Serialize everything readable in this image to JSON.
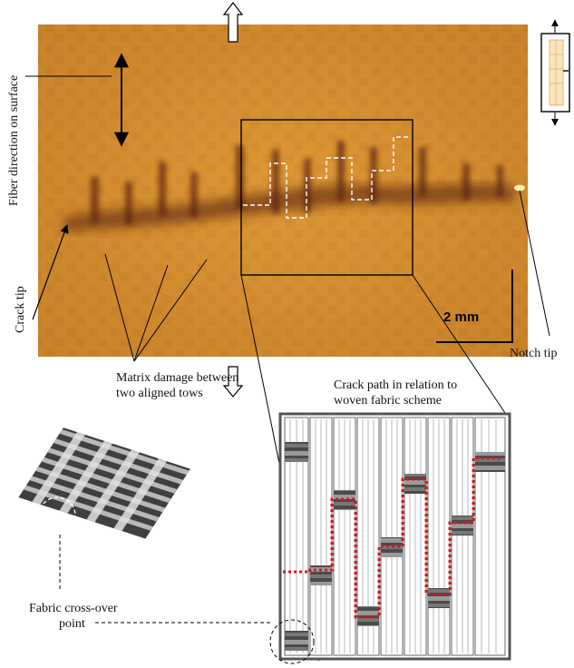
{
  "labels": {
    "fiber_direction": "Fiber direction on surface",
    "crack_tip": "Crack tip",
    "notch_tip": "Notch tip",
    "scale_bar": "2 mm",
    "matrix_damage_line1": "Matrix damage between",
    "matrix_damage_line2": "two aligned tows",
    "crack_path_line1": "Crack path in relation to",
    "crack_path_line2": "woven fabric scheme",
    "crossover_line1": "Fabric cross-over",
    "crossover_line2": "point"
  },
  "colors": {
    "specimen": "#d58f2f",
    "crack": "#6a2c10",
    "crack_path_dots": "#d21a1a",
    "fabric_lines": "#555555"
  },
  "icons": [
    "load-arrow-up-icon",
    "load-arrow-down-icon",
    "specimen-thumbnail-icon",
    "woven-fabric-3d-icon"
  ]
}
